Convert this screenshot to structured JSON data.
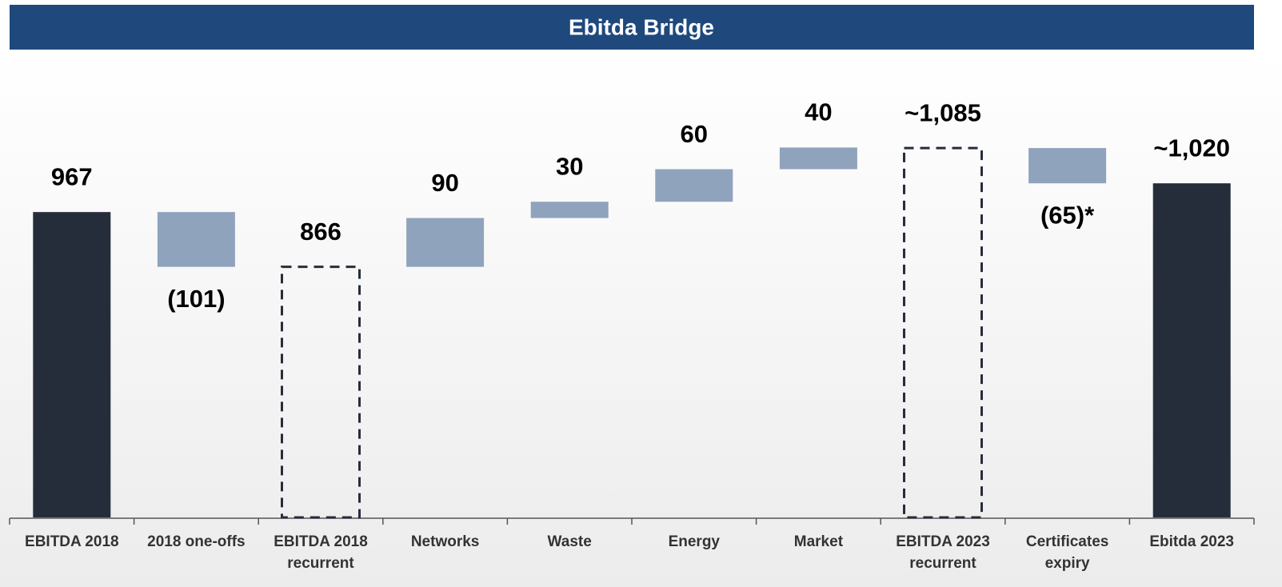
{
  "chart_data": {
    "type": "waterfall",
    "title": "Ebitda Bridge",
    "categories": [
      "EBITDA 2018",
      "2018 one-offs",
      "EBITDA 2018 recurrent",
      "Networks",
      "Waste",
      "Energy",
      "Market",
      "EBITDA 2023 recurrent",
      "Certificates expiry",
      "Ebitda 2023"
    ],
    "values": [
      967,
      -101,
      866,
      90,
      30,
      60,
      40,
      1085,
      -65,
      1020
    ],
    "value_labels": [
      "967",
      "(101)",
      "866",
      "90",
      "30",
      "60",
      "40",
      "~1,085",
      "(65)*",
      "~1,020"
    ],
    "measure": [
      "total",
      "relative",
      "subtotal",
      "relative",
      "relative",
      "relative",
      "relative",
      "subtotal",
      "relative",
      "total"
    ],
    "colors": {
      "total": "#262d3a",
      "relative": "#8fa3bd",
      "subtotal": "#262d3a"
    },
    "ylim": [
      404,
      1240
    ]
  }
}
